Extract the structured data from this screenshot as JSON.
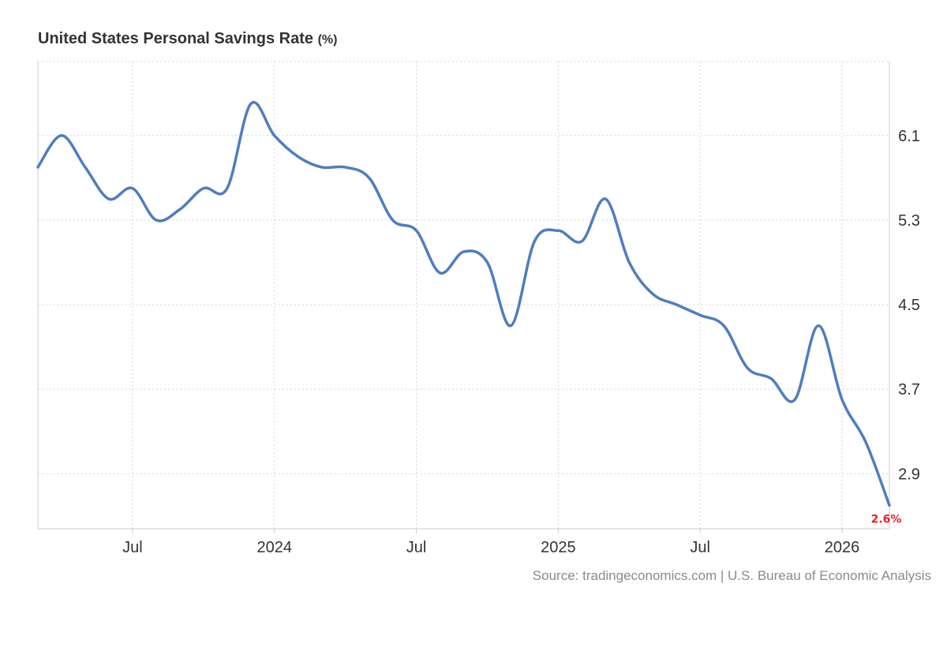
{
  "title": "United States Personal Savings Rate",
  "unit": "(%)",
  "source": "Source: tradingeconomics.com | U.S. Bureau of Economic Analysis",
  "last_value_label": "2.6%",
  "colors": {
    "line": "#4d7ebf",
    "last_value": "#e8202a",
    "grid": "#d6d6d6",
    "axis": "#cccccc",
    "tick_text": "#333333"
  },
  "chart_data": {
    "type": "line",
    "title": "United States Personal Savings Rate",
    "ylabel": "%",
    "ylim": [
      2.38,
      6.8
    ],
    "xlim": [
      "2023-03",
      "2026-03"
    ],
    "y_ticks": [
      2.9,
      3.7,
      4.5,
      5.3,
      6.1
    ],
    "x_ticks": [
      {
        "x": "2023-07",
        "label": "Jul"
      },
      {
        "x": "2024-01",
        "label": "2024"
      },
      {
        "x": "2024-07",
        "label": "Jul"
      },
      {
        "x": "2025-01",
        "label": "2025"
      },
      {
        "x": "2025-07",
        "label": "Jul"
      },
      {
        "x": "2026-01",
        "label": "2026"
      }
    ],
    "grid": true,
    "legend": "none",
    "series": [
      {
        "x": [
          "2023-03",
          "2023-04",
          "2023-05",
          "2023-06",
          "2023-07",
          "2023-08",
          "2023-09",
          "2023-10",
          "2023-11",
          "2023-12",
          "2024-01",
          "2024-02",
          "2024-03",
          "2024-04",
          "2024-05",
          "2024-06",
          "2024-07",
          "2024-08",
          "2024-09",
          "2024-10",
          "2024-11",
          "2024-12",
          "2025-01",
          "2025-02",
          "2025-03",
          "2025-04",
          "2025-05",
          "2025-06",
          "2025-07",
          "2025-08",
          "2025-09",
          "2025-10",
          "2025-11",
          "2025-12",
          "2026-01",
          "2026-02",
          "2026-03"
        ],
        "values": [
          5.8,
          6.1,
          5.8,
          5.5,
          5.6,
          5.3,
          5.4,
          5.6,
          5.6,
          6.4,
          6.1,
          5.9,
          5.8,
          5.8,
          5.7,
          5.3,
          5.2,
          4.8,
          5.0,
          4.9,
          4.3,
          5.1,
          5.2,
          5.1,
          5.5,
          4.9,
          4.6,
          4.5,
          4.4,
          4.3,
          3.9,
          3.8,
          3.6,
          4.3,
          3.6,
          3.2,
          2.6
        ]
      }
    ]
  }
}
